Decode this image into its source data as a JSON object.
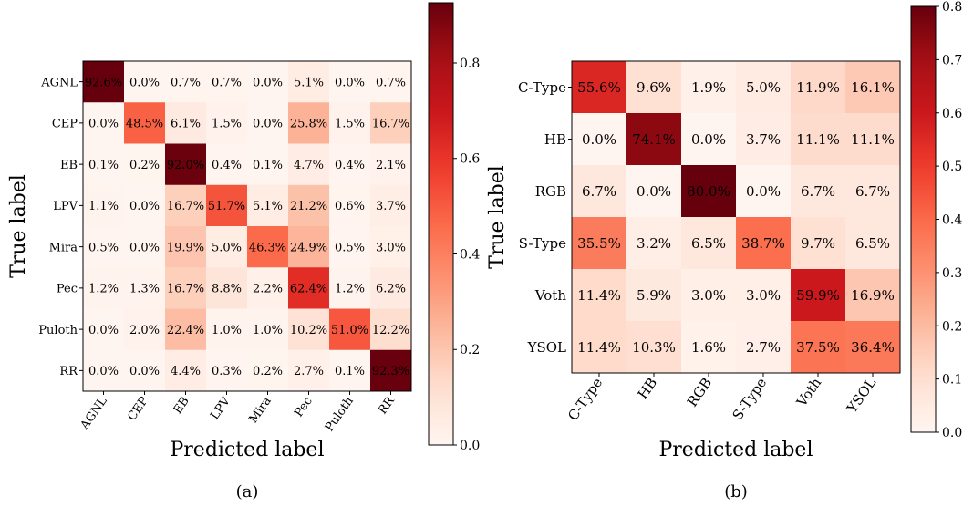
{
  "chart_data": [
    {
      "type": "heatmap",
      "panel_label": "(a)",
      "xlabel": "Predicted label",
      "ylabel": "True label",
      "categories": [
        "AGNL",
        "CEP",
        "EB",
        "LPV",
        "Mira",
        "Pec",
        "Puloth",
        "RR"
      ],
      "matrix": [
        [
          92.6,
          0.0,
          0.7,
          0.7,
          0.0,
          5.1,
          0.0,
          0.7
        ],
        [
          0.0,
          48.5,
          6.1,
          1.5,
          0.0,
          25.8,
          1.5,
          16.7
        ],
        [
          0.1,
          0.2,
          92.0,
          0.4,
          0.1,
          4.7,
          0.4,
          2.1
        ],
        [
          1.1,
          0.0,
          16.7,
          51.7,
          5.1,
          21.2,
          0.6,
          3.7
        ],
        [
          0.5,
          0.0,
          19.9,
          5.0,
          46.3,
          24.9,
          0.5,
          3.0
        ],
        [
          1.2,
          1.3,
          16.7,
          8.8,
          2.2,
          62.4,
          1.2,
          6.2
        ],
        [
          0.0,
          2.0,
          22.4,
          1.0,
          1.0,
          10.2,
          51.0,
          12.2
        ],
        [
          0.0,
          0.0,
          4.4,
          0.3,
          0.2,
          2.7,
          0.1,
          92.3
        ]
      ],
      "colorbar": {
        "min": 0.0,
        "max": 0.926,
        "ticks": [
          0.0,
          0.2,
          0.4,
          0.6,
          0.8
        ],
        "tick_labels": [
          "0.0",
          "0.2",
          "0.4",
          "0.6",
          "0.8"
        ]
      },
      "colormap": "Reds"
    },
    {
      "type": "heatmap",
      "panel_label": "(b)",
      "xlabel": "Predicted label",
      "ylabel": "True label",
      "categories": [
        "C-Type",
        "HB",
        "RGB",
        "S-Type",
        "Voth",
        "YSOL"
      ],
      "matrix": [
        [
          55.6,
          9.6,
          1.9,
          5.0,
          11.9,
          16.1
        ],
        [
          0.0,
          74.1,
          0.0,
          3.7,
          11.1,
          11.1
        ],
        [
          6.7,
          0.0,
          80.0,
          0.0,
          6.7,
          6.7
        ],
        [
          35.5,
          3.2,
          6.5,
          38.7,
          9.7,
          6.5
        ],
        [
          11.4,
          5.9,
          3.0,
          3.0,
          59.9,
          16.9
        ],
        [
          11.4,
          10.3,
          1.6,
          2.7,
          37.5,
          36.4
        ]
      ],
      "colorbar": {
        "min": 0.0,
        "max": 0.8,
        "ticks": [
          0.0,
          0.1,
          0.2,
          0.3,
          0.4,
          0.5,
          0.6,
          0.7,
          0.8
        ],
        "tick_labels": [
          "0.0",
          "0.1",
          "0.2",
          "0.3",
          "0.4",
          "0.5",
          "0.6",
          "0.7",
          "0.8"
        ]
      },
      "colormap": "Reds"
    }
  ]
}
